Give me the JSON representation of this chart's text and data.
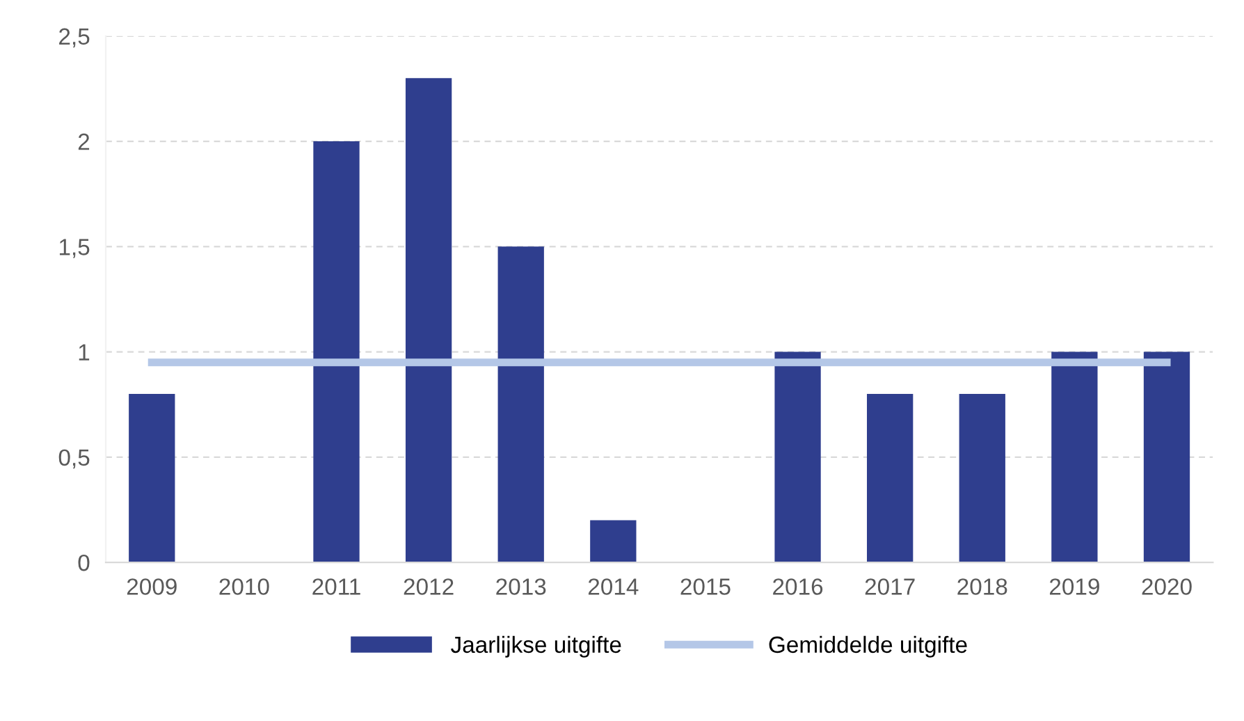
{
  "chart_data": {
    "type": "bar",
    "categories": [
      "2009",
      "2010",
      "2011",
      "2012",
      "2013",
      "2014",
      "2015",
      "2016",
      "2017",
      "2018",
      "2019",
      "2020"
    ],
    "series": [
      {
        "name": "Jaarlijkse uitgifte",
        "color": "#2f3e8e",
        "values": [
          0.8,
          0,
          2.0,
          2.3,
          1.5,
          0.2,
          0,
          1.0,
          0.8,
          0.8,
          1.0,
          1.0
        ]
      },
      {
        "name": "Gemiddelde uitgifte",
        "type": "line",
        "color": "#b4c7e7",
        "values": [
          0.95,
          0.95,
          0.95,
          0.95,
          0.95,
          0.95,
          0.95,
          0.95,
          0.95,
          0.95,
          0.95,
          0.95
        ]
      }
    ],
    "ylim": [
      0,
      2.5
    ],
    "yticks": [
      0,
      {
        "value": 0.5,
        "label": "0,5"
      },
      1,
      {
        "value": 1.5,
        "label": "1,5"
      },
      2,
      {
        "value": 2.5,
        "label": "2,5"
      }
    ],
    "grid": "y",
    "legend": "bottom",
    "marker": "none",
    "line_style": "solid"
  }
}
